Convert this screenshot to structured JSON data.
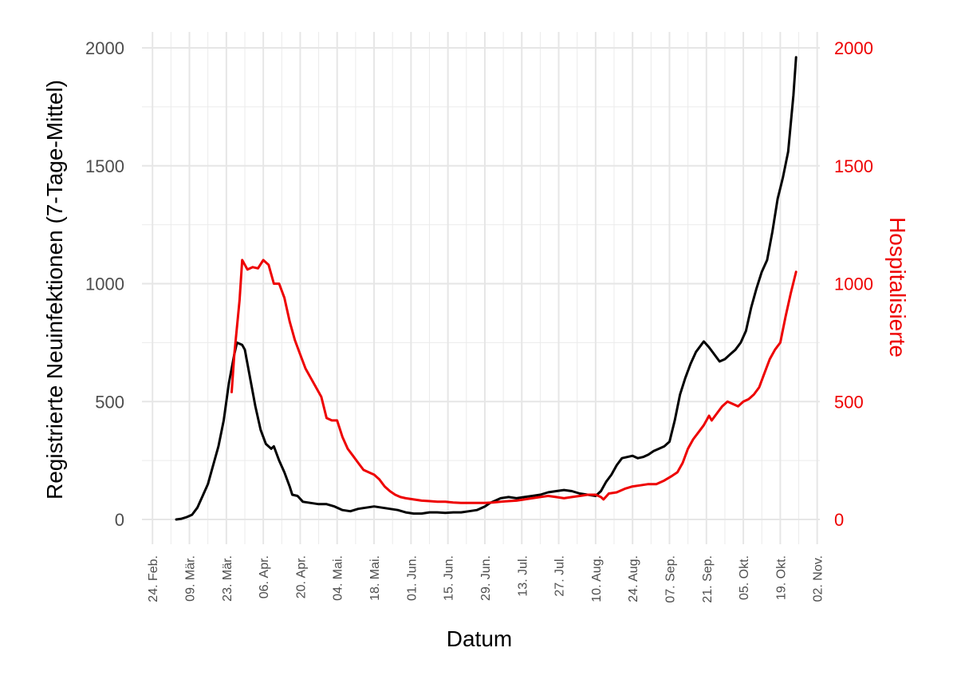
{
  "chart_data": {
    "type": "line",
    "xlabel": "Datum",
    "ylabel_left": "Registrierte Neuinfektionen (7-Tage-Mittel)",
    "ylabel_right": "Hospitalisierte",
    "ylim_left": [
      -100,
      2050
    ],
    "ylim_right": [
      -100,
      2050
    ],
    "yticks": [
      "0",
      "500",
      "1000",
      "1500",
      "2000"
    ],
    "xlim": [
      "2020-02-20",
      "2020-11-03"
    ],
    "xticks": [
      {
        "date": "2020-02-24",
        "label": "24. Feb."
      },
      {
        "date": "2020-03-09",
        "label": "09. Mär."
      },
      {
        "date": "2020-03-23",
        "label": "23. Mär."
      },
      {
        "date": "2020-04-06",
        "label": "06. Apr."
      },
      {
        "date": "2020-04-20",
        "label": "20. Apr."
      },
      {
        "date": "2020-05-04",
        "label": "04. Mai."
      },
      {
        "date": "2020-05-18",
        "label": "18. Mai."
      },
      {
        "date": "2020-06-01",
        "label": "01. Jun."
      },
      {
        "date": "2020-06-15",
        "label": "15. Jun."
      },
      {
        "date": "2020-06-29",
        "label": "29. Jun."
      },
      {
        "date": "2020-07-13",
        "label": "13. Jul."
      },
      {
        "date": "2020-07-27",
        "label": "27. Jul."
      },
      {
        "date": "2020-08-10",
        "label": "10. Aug."
      },
      {
        "date": "2020-08-24",
        "label": "24. Aug."
      },
      {
        "date": "2020-09-07",
        "label": "07. Sep."
      },
      {
        "date": "2020-09-21",
        "label": "21. Sep."
      },
      {
        "date": "2020-10-05",
        "label": "05. Okt."
      },
      {
        "date": "2020-10-19",
        "label": "19. Okt."
      },
      {
        "date": "2020-11-02",
        "label": "02. Nov."
      }
    ],
    "grid": true,
    "series": [
      {
        "axis": "left",
        "color": "#000000",
        "points": [
          [
            "2020-03-04",
            0
          ],
          [
            "2020-03-06",
            3
          ],
          [
            "2020-03-08",
            10
          ],
          [
            "2020-03-10",
            20
          ],
          [
            "2020-03-12",
            50
          ],
          [
            "2020-03-14",
            100
          ],
          [
            "2020-03-16",
            150
          ],
          [
            "2020-03-18",
            230
          ],
          [
            "2020-03-20",
            310
          ],
          [
            "2020-03-22",
            420
          ],
          [
            "2020-03-24",
            580
          ],
          [
            "2020-03-26",
            700
          ],
          [
            "2020-03-27",
            750
          ],
          [
            "2020-03-29",
            740
          ],
          [
            "2020-03-30",
            720
          ],
          [
            "2020-04-01",
            600
          ],
          [
            "2020-04-03",
            480
          ],
          [
            "2020-04-05",
            380
          ],
          [
            "2020-04-07",
            320
          ],
          [
            "2020-04-09",
            300
          ],
          [
            "2020-04-10",
            310
          ],
          [
            "2020-04-12",
            250
          ],
          [
            "2020-04-14",
            200
          ],
          [
            "2020-04-16",
            140
          ],
          [
            "2020-04-17",
            105
          ],
          [
            "2020-04-19",
            100
          ],
          [
            "2020-04-21",
            75
          ],
          [
            "2020-04-24",
            70
          ],
          [
            "2020-04-27",
            65
          ],
          [
            "2020-04-30",
            65
          ],
          [
            "2020-05-03",
            55
          ],
          [
            "2020-05-06",
            40
          ],
          [
            "2020-05-09",
            35
          ],
          [
            "2020-05-12",
            45
          ],
          [
            "2020-05-15",
            50
          ],
          [
            "2020-05-18",
            55
          ],
          [
            "2020-05-21",
            50
          ],
          [
            "2020-05-24",
            45
          ],
          [
            "2020-05-27",
            40
          ],
          [
            "2020-05-30",
            30
          ],
          [
            "2020-06-02",
            25
          ],
          [
            "2020-06-05",
            25
          ],
          [
            "2020-06-08",
            30
          ],
          [
            "2020-06-11",
            30
          ],
          [
            "2020-06-14",
            28
          ],
          [
            "2020-06-17",
            30
          ],
          [
            "2020-06-20",
            30
          ],
          [
            "2020-06-23",
            35
          ],
          [
            "2020-06-26",
            40
          ],
          [
            "2020-06-29",
            55
          ],
          [
            "2020-07-01",
            70
          ],
          [
            "2020-07-03",
            80
          ],
          [
            "2020-07-05",
            90
          ],
          [
            "2020-07-08",
            95
          ],
          [
            "2020-07-11",
            90
          ],
          [
            "2020-07-14",
            95
          ],
          [
            "2020-07-17",
            100
          ],
          [
            "2020-07-20",
            105
          ],
          [
            "2020-07-23",
            115
          ],
          [
            "2020-07-26",
            120
          ],
          [
            "2020-07-29",
            125
          ],
          [
            "2020-08-01",
            120
          ],
          [
            "2020-08-04",
            110
          ],
          [
            "2020-08-07",
            105
          ],
          [
            "2020-08-10",
            100
          ],
          [
            "2020-08-12",
            120
          ],
          [
            "2020-08-14",
            160
          ],
          [
            "2020-08-16",
            190
          ],
          [
            "2020-08-18",
            230
          ],
          [
            "2020-08-20",
            260
          ],
          [
            "2020-08-22",
            265
          ],
          [
            "2020-08-24",
            270
          ],
          [
            "2020-08-26",
            260
          ],
          [
            "2020-08-28",
            265
          ],
          [
            "2020-08-30",
            275
          ],
          [
            "2020-09-01",
            290
          ],
          [
            "2020-09-03",
            300
          ],
          [
            "2020-09-05",
            310
          ],
          [
            "2020-09-07",
            330
          ],
          [
            "2020-09-09",
            420
          ],
          [
            "2020-09-11",
            530
          ],
          [
            "2020-09-13",
            600
          ],
          [
            "2020-09-15",
            660
          ],
          [
            "2020-09-17",
            710
          ],
          [
            "2020-09-19",
            740
          ],
          [
            "2020-09-20",
            755
          ],
          [
            "2020-09-22",
            730
          ],
          [
            "2020-09-24",
            700
          ],
          [
            "2020-09-26",
            670
          ],
          [
            "2020-09-28",
            680
          ],
          [
            "2020-09-30",
            700
          ],
          [
            "2020-10-02",
            720
          ],
          [
            "2020-10-04",
            750
          ],
          [
            "2020-10-06",
            800
          ],
          [
            "2020-10-08",
            900
          ],
          [
            "2020-10-10",
            980
          ],
          [
            "2020-10-12",
            1050
          ],
          [
            "2020-10-14",
            1100
          ],
          [
            "2020-10-16",
            1220
          ],
          [
            "2020-10-18",
            1360
          ],
          [
            "2020-10-20",
            1450
          ],
          [
            "2020-10-22",
            1560
          ],
          [
            "2020-10-24",
            1800
          ],
          [
            "2020-10-25",
            1960
          ]
        ]
      },
      {
        "axis": "right",
        "color": "#ee0000",
        "points": [
          [
            "2020-03-25",
            540
          ],
          [
            "2020-03-26",
            700
          ],
          [
            "2020-03-28",
            930
          ],
          [
            "2020-03-29",
            1100
          ],
          [
            "2020-03-31",
            1060
          ],
          [
            "2020-04-02",
            1070
          ],
          [
            "2020-04-04",
            1065
          ],
          [
            "2020-04-06",
            1100
          ],
          [
            "2020-04-08",
            1080
          ],
          [
            "2020-04-10",
            1000
          ],
          [
            "2020-04-12",
            1000
          ],
          [
            "2020-04-14",
            940
          ],
          [
            "2020-04-16",
            840
          ],
          [
            "2020-04-18",
            760
          ],
          [
            "2020-04-20",
            700
          ],
          [
            "2020-04-22",
            640
          ],
          [
            "2020-04-24",
            600
          ],
          [
            "2020-04-26",
            560
          ],
          [
            "2020-04-28",
            520
          ],
          [
            "2020-04-30",
            430
          ],
          [
            "2020-05-02",
            420
          ],
          [
            "2020-05-04",
            420
          ],
          [
            "2020-05-06",
            350
          ],
          [
            "2020-05-08",
            300
          ],
          [
            "2020-05-10",
            270
          ],
          [
            "2020-05-12",
            240
          ],
          [
            "2020-05-14",
            210
          ],
          [
            "2020-05-16",
            200
          ],
          [
            "2020-05-18",
            190
          ],
          [
            "2020-05-20",
            170
          ],
          [
            "2020-05-22",
            140
          ],
          [
            "2020-05-24",
            120
          ],
          [
            "2020-05-26",
            105
          ],
          [
            "2020-05-28",
            95
          ],
          [
            "2020-05-30",
            90
          ],
          [
            "2020-06-02",
            85
          ],
          [
            "2020-06-05",
            80
          ],
          [
            "2020-06-08",
            78
          ],
          [
            "2020-06-11",
            75
          ],
          [
            "2020-06-14",
            75
          ],
          [
            "2020-06-17",
            72
          ],
          [
            "2020-06-20",
            70
          ],
          [
            "2020-06-23",
            70
          ],
          [
            "2020-06-26",
            70
          ],
          [
            "2020-06-29",
            70
          ],
          [
            "2020-07-02",
            72
          ],
          [
            "2020-07-05",
            75
          ],
          [
            "2020-07-08",
            78
          ],
          [
            "2020-07-11",
            80
          ],
          [
            "2020-07-14",
            85
          ],
          [
            "2020-07-17",
            90
          ],
          [
            "2020-07-20",
            95
          ],
          [
            "2020-07-23",
            100
          ],
          [
            "2020-07-26",
            95
          ],
          [
            "2020-07-29",
            90
          ],
          [
            "2020-08-01",
            95
          ],
          [
            "2020-08-04",
            100
          ],
          [
            "2020-08-07",
            105
          ],
          [
            "2020-08-10",
            105
          ],
          [
            "2020-08-12",
            95
          ],
          [
            "2020-08-13",
            85
          ],
          [
            "2020-08-15",
            110
          ],
          [
            "2020-08-18",
            115
          ],
          [
            "2020-08-21",
            130
          ],
          [
            "2020-08-24",
            140
          ],
          [
            "2020-08-27",
            145
          ],
          [
            "2020-08-30",
            150
          ],
          [
            "2020-09-02",
            150
          ],
          [
            "2020-09-05",
            165
          ],
          [
            "2020-09-08",
            185
          ],
          [
            "2020-09-10",
            200
          ],
          [
            "2020-09-12",
            240
          ],
          [
            "2020-09-14",
            300
          ],
          [
            "2020-09-16",
            340
          ],
          [
            "2020-09-18",
            370
          ],
          [
            "2020-09-20",
            400
          ],
          [
            "2020-09-22",
            440
          ],
          [
            "2020-09-23",
            420
          ],
          [
            "2020-09-25",
            450
          ],
          [
            "2020-09-27",
            480
          ],
          [
            "2020-09-29",
            500
          ],
          [
            "2020-10-01",
            490
          ],
          [
            "2020-10-03",
            480
          ],
          [
            "2020-10-05",
            500
          ],
          [
            "2020-10-07",
            510
          ],
          [
            "2020-10-09",
            530
          ],
          [
            "2020-10-11",
            560
          ],
          [
            "2020-10-13",
            620
          ],
          [
            "2020-10-15",
            680
          ],
          [
            "2020-10-17",
            720
          ],
          [
            "2020-10-19",
            750
          ],
          [
            "2020-10-21",
            860
          ],
          [
            "2020-10-23",
            960
          ],
          [
            "2020-10-25",
            1050
          ]
        ]
      }
    ]
  }
}
